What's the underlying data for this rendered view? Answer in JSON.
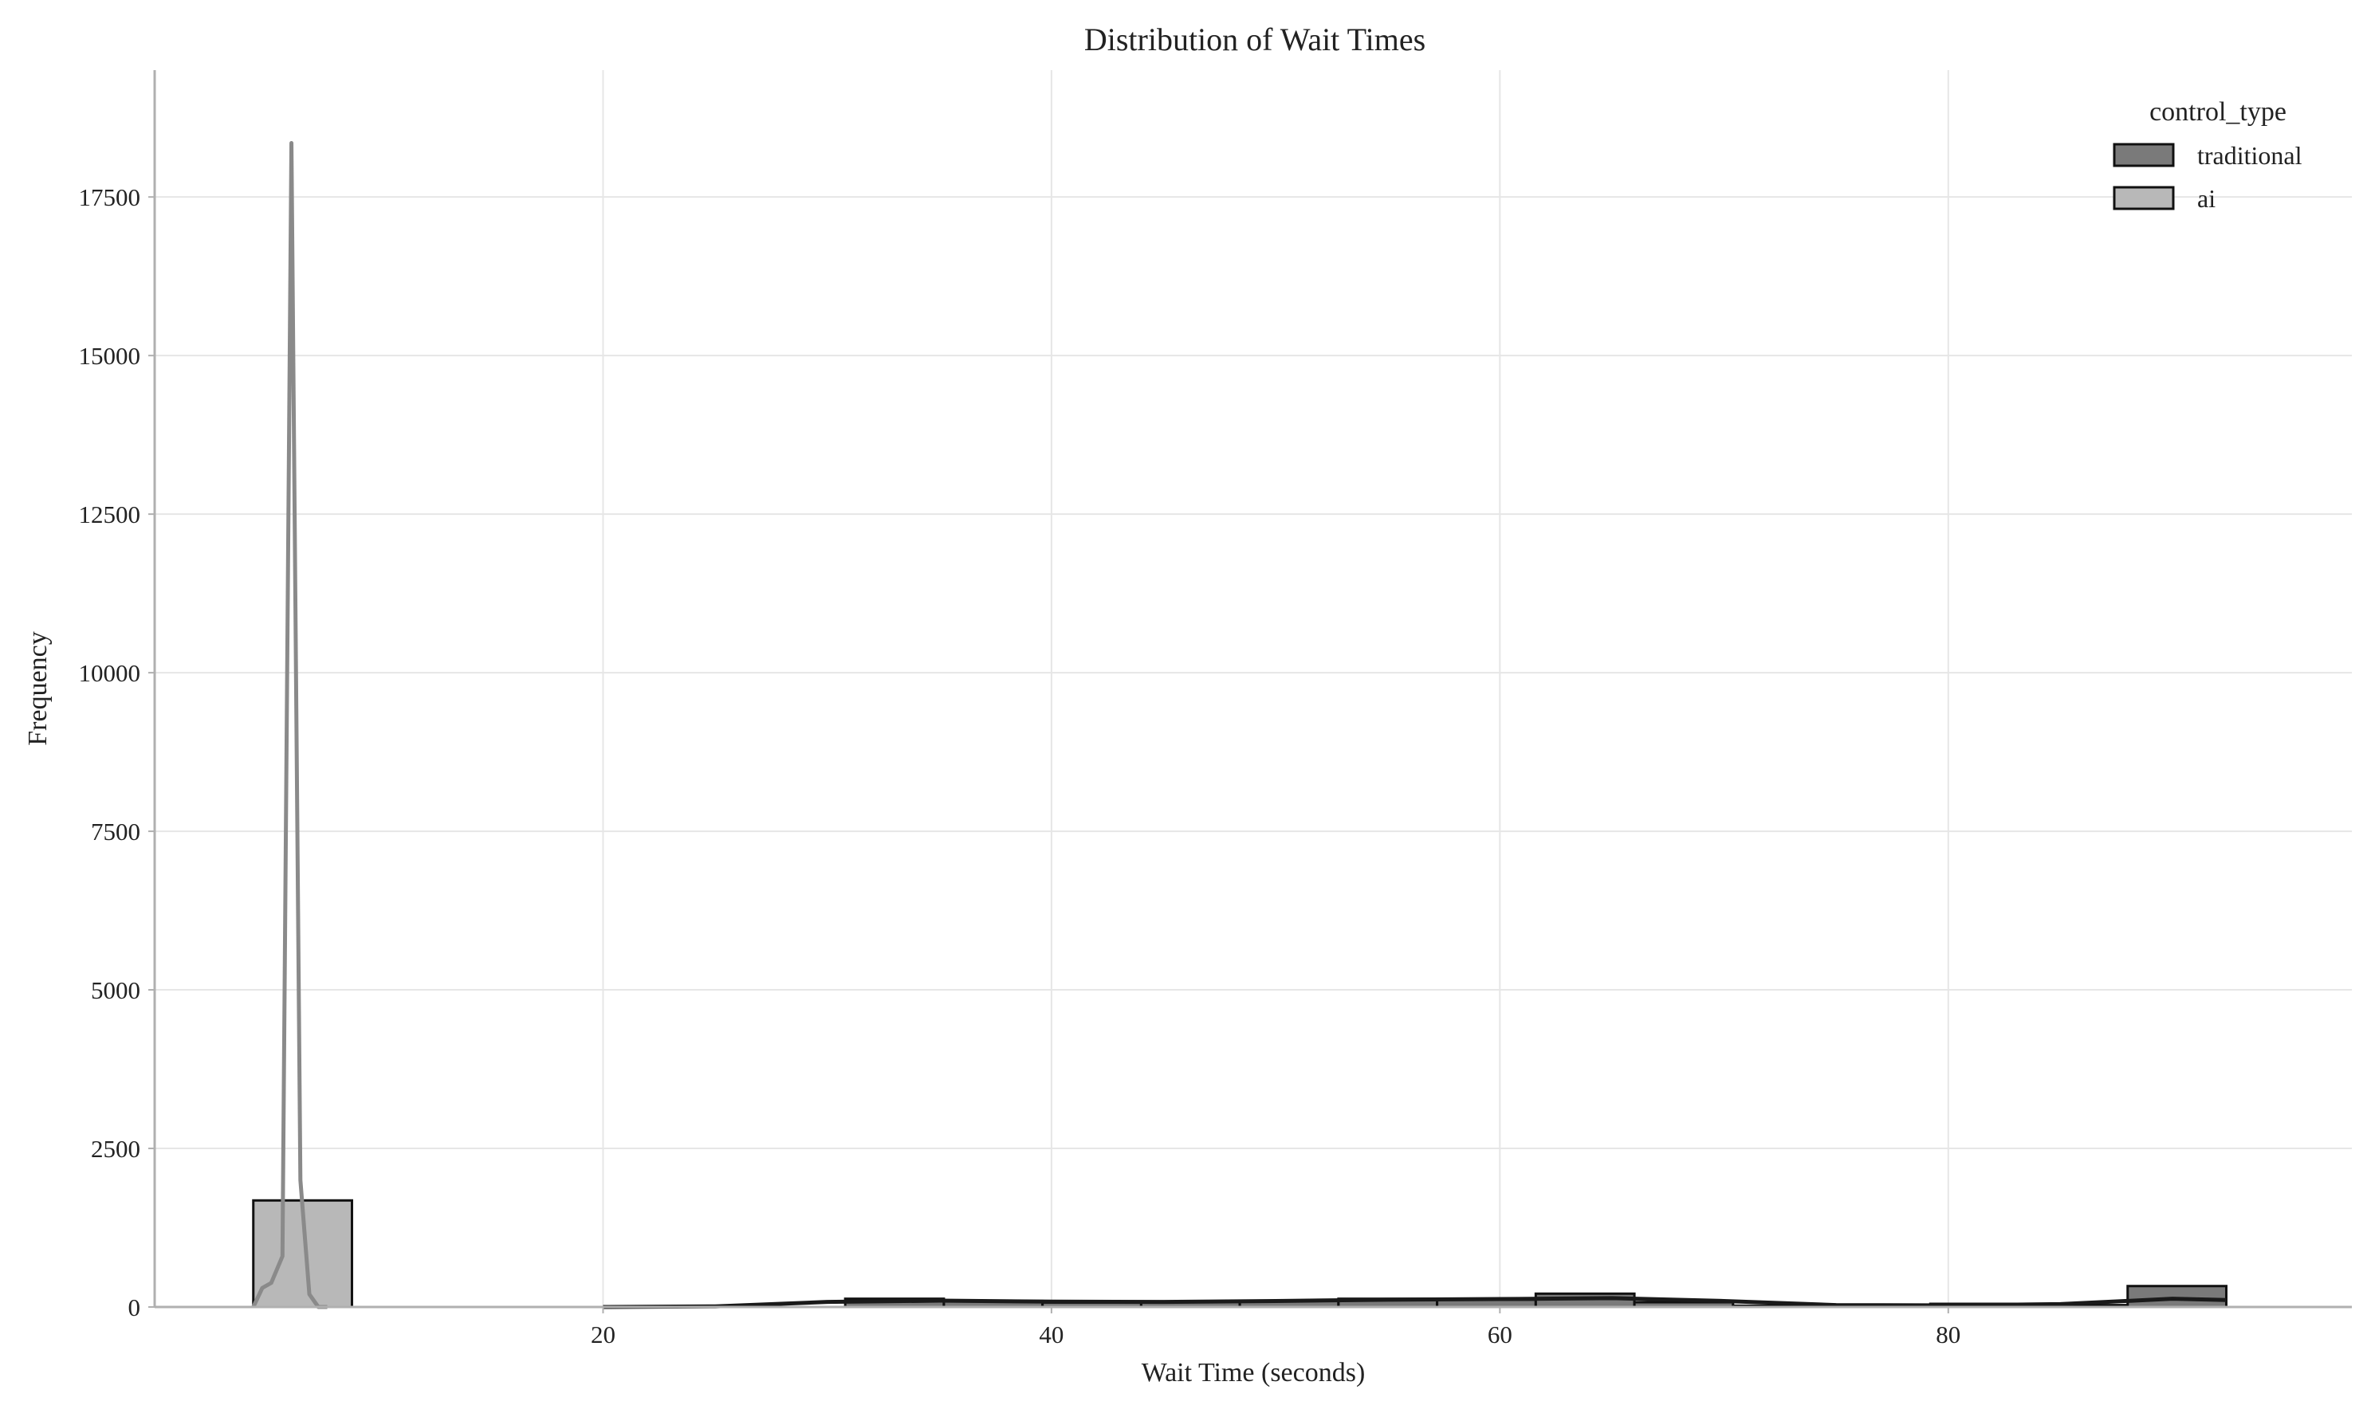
{
  "chart_data": {
    "type": "bar",
    "title": "Distribution of Wait Times",
    "xlabel": "Wait Time (seconds)",
    "ylabel": "Frequency",
    "xlim": [
      0,
      98
    ],
    "ylim": [
      0,
      19500
    ],
    "xticks": [
      20,
      40,
      60,
      80
    ],
    "yticks": [
      0,
      2500,
      5000,
      7500,
      10000,
      12500,
      15000,
      17500
    ],
    "grid": true,
    "legend": {
      "title": "control_type",
      "placement": "top-right"
    },
    "colors": {
      "traditional": "#7a7a7a",
      "ai": "#b8b8b8",
      "kde_ai": "#8a8a8a",
      "kde_traditional": "#1a1a1a",
      "edge": "#111111"
    },
    "bin_edges": [
      4.4,
      8.8,
      13.2,
      17.6,
      22.0,
      26.4,
      30.8,
      35.2,
      39.6,
      44.0,
      48.4,
      52.8,
      57.2,
      61.6,
      66.0,
      70.4,
      74.8,
      79.2,
      83.6,
      88.0,
      92.4
    ],
    "series": [
      {
        "name": "traditional",
        "values": [
          0,
          0,
          0,
          0,
          0,
          0,
          130,
          95,
          70,
          85,
          95,
          130,
          115,
          210,
          75,
          20,
          20,
          50,
          30,
          330
        ],
        "kde": {
          "x": [
            20,
            25,
            30,
            35,
            40,
            45,
            50,
            55,
            60,
            65,
            70,
            75,
            80,
            85,
            90,
            92.4
          ],
          "y": [
            0,
            10,
            80,
            100,
            85,
            80,
            95,
            115,
            125,
            140,
            95,
            30,
            25,
            45,
            130,
            110
          ]
        }
      },
      {
        "name": "ai",
        "values": [
          1680,
          0,
          0,
          0,
          0,
          0,
          0,
          0,
          0,
          0,
          0,
          0,
          0,
          0,
          0,
          0,
          0,
          0,
          0,
          0
        ],
        "kde": {
          "x": [
            4.4,
            4.8,
            5.2,
            5.7,
            6.1,
            6.5,
            6.9,
            7.3,
            7.7
          ],
          "y": [
            0,
            300,
            380,
            800,
            18350,
            2000,
            200,
            0,
            0
          ]
        }
      }
    ]
  }
}
